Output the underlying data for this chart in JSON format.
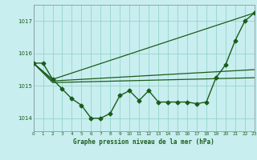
{
  "title": "Graphe pression niveau de la mer (hPa)",
  "background_color": "#c8eef0",
  "grid_color": "#96d4c8",
  "line_color": "#1a5c1a",
  "xlim": [
    0,
    23
  ],
  "ylim": [
    1013.6,
    1017.5
  ],
  "yticks": [
    1014,
    1015,
    1016,
    1017
  ],
  "xticks": [
    0,
    1,
    2,
    3,
    4,
    5,
    6,
    7,
    8,
    9,
    10,
    11,
    12,
    13,
    14,
    15,
    16,
    17,
    18,
    19,
    20,
    21,
    22,
    23
  ],
  "series_main": {
    "x": [
      0,
      1,
      2,
      3,
      4,
      5,
      6,
      7,
      8,
      9,
      10,
      11,
      12,
      13,
      14,
      15,
      16,
      17,
      18,
      19,
      20,
      21,
      22,
      23
    ],
    "y": [
      1015.7,
      1015.7,
      1015.2,
      1014.9,
      1014.6,
      1014.4,
      1014.0,
      1014.0,
      1014.15,
      1014.7,
      1014.85,
      1014.55,
      1014.85,
      1014.5,
      1014.5,
      1014.5,
      1014.5,
      1014.45,
      1014.5,
      1015.25,
      1015.65,
      1016.4,
      1017.0,
      1017.25
    ]
  },
  "line_upper": {
    "x": [
      0,
      2,
      23
    ],
    "y": [
      1015.7,
      1015.2,
      1017.25
    ]
  },
  "line_mid": {
    "x": [
      0,
      2,
      23
    ],
    "y": [
      1015.7,
      1015.15,
      1015.5
    ]
  },
  "line_lower": {
    "x": [
      0,
      2,
      23
    ],
    "y": [
      1015.7,
      1015.1,
      1015.25
    ]
  },
  "figsize": [
    3.2,
    2.0
  ],
  "dpi": 100
}
